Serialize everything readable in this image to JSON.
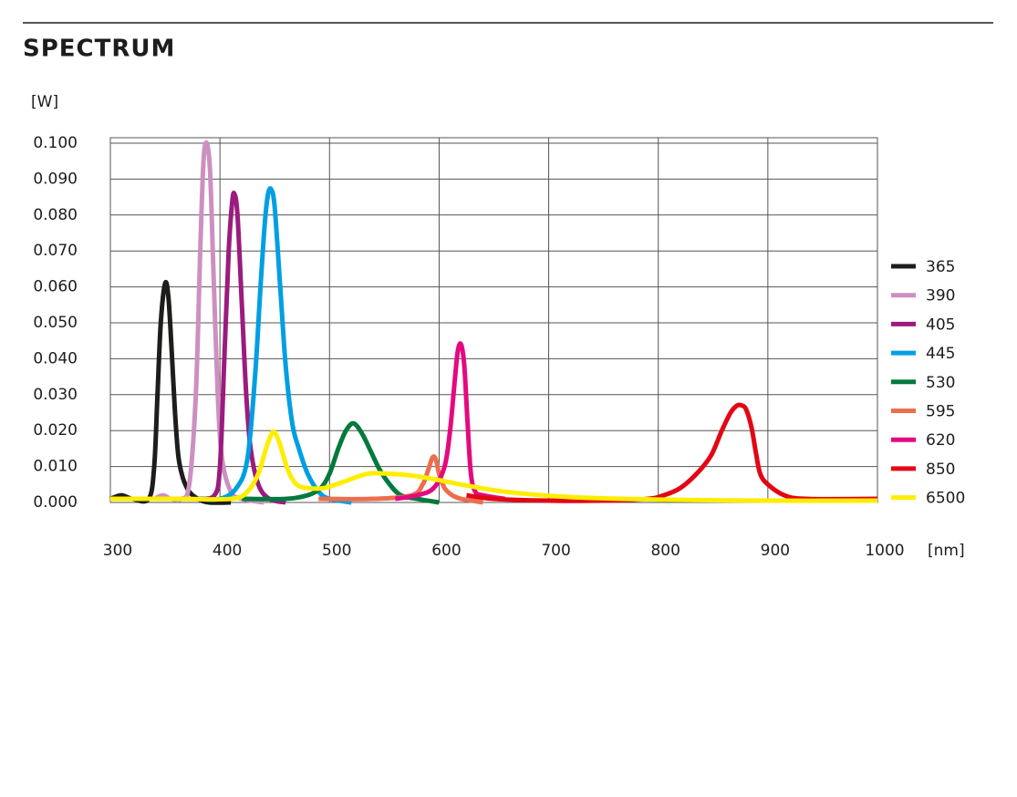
{
  "chart_data": {
    "type": "line",
    "title": "SPECTRUM",
    "ylabel": "[W]",
    "xlabel": "[nm]",
    "xlim": [
      300,
      1000
    ],
    "ylim": [
      0,
      0.1
    ],
    "xticks": [
      300,
      400,
      500,
      600,
      700,
      800,
      900,
      1000
    ],
    "yticks": [
      {
        "value": 0,
        "label": "0.000"
      },
      {
        "value": 0.01,
        "label": "0.010"
      },
      {
        "value": 0.02,
        "label": "0.020"
      },
      {
        "value": 0.03,
        "label": "0.030"
      },
      {
        "value": 0.04,
        "label": "0.040"
      },
      {
        "value": 0.05,
        "label": "0.050"
      },
      {
        "value": 0.06,
        "label": "0.060"
      },
      {
        "value": 0.07,
        "label": "0.070"
      },
      {
        "value": 0.08,
        "label": "0.080"
      },
      {
        "value": 0.09,
        "label": "0.090"
      },
      {
        "value": 0.1,
        "label": "0.100"
      }
    ],
    "grid": true,
    "legend": "right",
    "series": [
      {
        "name": "365",
        "color": "#1d1d1b",
        "x": [
          300,
          310,
          320,
          335,
          340,
          343,
          346,
          350,
          353,
          356,
          359,
          362,
          366,
          372,
          380,
          390,
          410
        ],
        "values": [
          0.001,
          0.002,
          0.001,
          0.001,
          0.01,
          0.03,
          0.05,
          0.061,
          0.057,
          0.042,
          0.025,
          0.013,
          0.007,
          0.003,
          0.001,
          0,
          0
        ]
      },
      {
        "name": "390",
        "color": "#cc90c0",
        "x": [
          340,
          348,
          355,
          365,
          372,
          378,
          382,
          385,
          388,
          391,
          394,
          398,
          402,
          410,
          420,
          440
        ],
        "values": [
          0.001,
          0.002,
          0.001,
          0.001,
          0.005,
          0.03,
          0.07,
          0.095,
          0.1,
          0.092,
          0.065,
          0.03,
          0.012,
          0.003,
          0.001,
          0
        ]
      },
      {
        "name": "405",
        "color": "#9b1b7e",
        "x": [
          380,
          395,
          400,
          404,
          408,
          411,
          413,
          416,
          420,
          424,
          428,
          435,
          445,
          460
        ],
        "values": [
          0.001,
          0.002,
          0.01,
          0.04,
          0.07,
          0.083,
          0.086,
          0.08,
          0.055,
          0.03,
          0.015,
          0.005,
          0.001,
          0
        ]
      },
      {
        "name": "445",
        "color": "#009fe3",
        "x": [
          380,
          400,
          415,
          425,
          432,
          437,
          441,
          444,
          447,
          450,
          455,
          460,
          466,
          472,
          480,
          490,
          500,
          520
        ],
        "values": [
          0.001,
          0.001,
          0.004,
          0.012,
          0.035,
          0.06,
          0.078,
          0.086,
          0.087,
          0.082,
          0.06,
          0.038,
          0.022,
          0.015,
          0.008,
          0.003,
          0.001,
          0
        ]
      },
      {
        "name": "530",
        "color": "#007a3d",
        "x": [
          420,
          460,
          480,
          492,
          500,
          508,
          515,
          522,
          530,
          538,
          546,
          555,
          565,
          580,
          600
        ],
        "values": [
          0.001,
          0.001,
          0.002,
          0.004,
          0.008,
          0.015,
          0.02,
          0.022,
          0.019,
          0.014,
          0.009,
          0.005,
          0.002,
          0.001,
          0
        ]
      },
      {
        "name": "595",
        "color": "#ec6e4f",
        "x": [
          490,
          540,
          575,
          585,
          590,
          594,
          597,
          600,
          605,
          612,
          620,
          630,
          640
        ],
        "values": [
          0.001,
          0.001,
          0.002,
          0.005,
          0.009,
          0.0125,
          0.012,
          0.008,
          0.004,
          0.002,
          0.001,
          0.0005,
          0
        ]
      },
      {
        "name": "620",
        "color": "#e5097f",
        "x": [
          560,
          580,
          595,
          605,
          610,
          614,
          617,
          620,
          623,
          626,
          629,
          633,
          640,
          660
        ],
        "values": [
          0.001,
          0.002,
          0.004,
          0.01,
          0.02,
          0.033,
          0.042,
          0.044,
          0.038,
          0.022,
          0.008,
          0.003,
          0.002,
          0.001
        ]
      },
      {
        "name": "850",
        "color": "#e30613",
        "x": [
          625,
          650,
          700,
          750,
          790,
          805,
          820,
          835,
          848,
          858,
          866,
          872,
          876,
          880,
          885,
          889,
          893,
          900,
          915,
          935,
          1000
        ],
        "values": [
          0.002,
          0.001,
          0.0005,
          0.0005,
          0.001,
          0.002,
          0.004,
          0.008,
          0.013,
          0.02,
          0.025,
          0.027,
          0.027,
          0.026,
          0.021,
          0.014,
          0.008,
          0.005,
          0.002,
          0.001,
          0.001
        ]
      },
      {
        "name": "6500",
        "color": "#ffed00",
        "x": [
          300,
          360,
          410,
          425,
          435,
          442,
          447,
          450,
          455,
          462,
          470,
          480,
          495,
          515,
          535,
          555,
          575,
          595,
          620,
          660,
          720,
          800,
          900,
          1000
        ],
        "values": [
          0.001,
          0.001,
          0.001,
          0.003,
          0.008,
          0.015,
          0.019,
          0.0195,
          0.016,
          0.009,
          0.005,
          0.004,
          0.004,
          0.006,
          0.008,
          0.008,
          0.0075,
          0.0065,
          0.005,
          0.003,
          0.0015,
          0.0008,
          0.0005,
          0.0005
        ]
      }
    ]
  }
}
